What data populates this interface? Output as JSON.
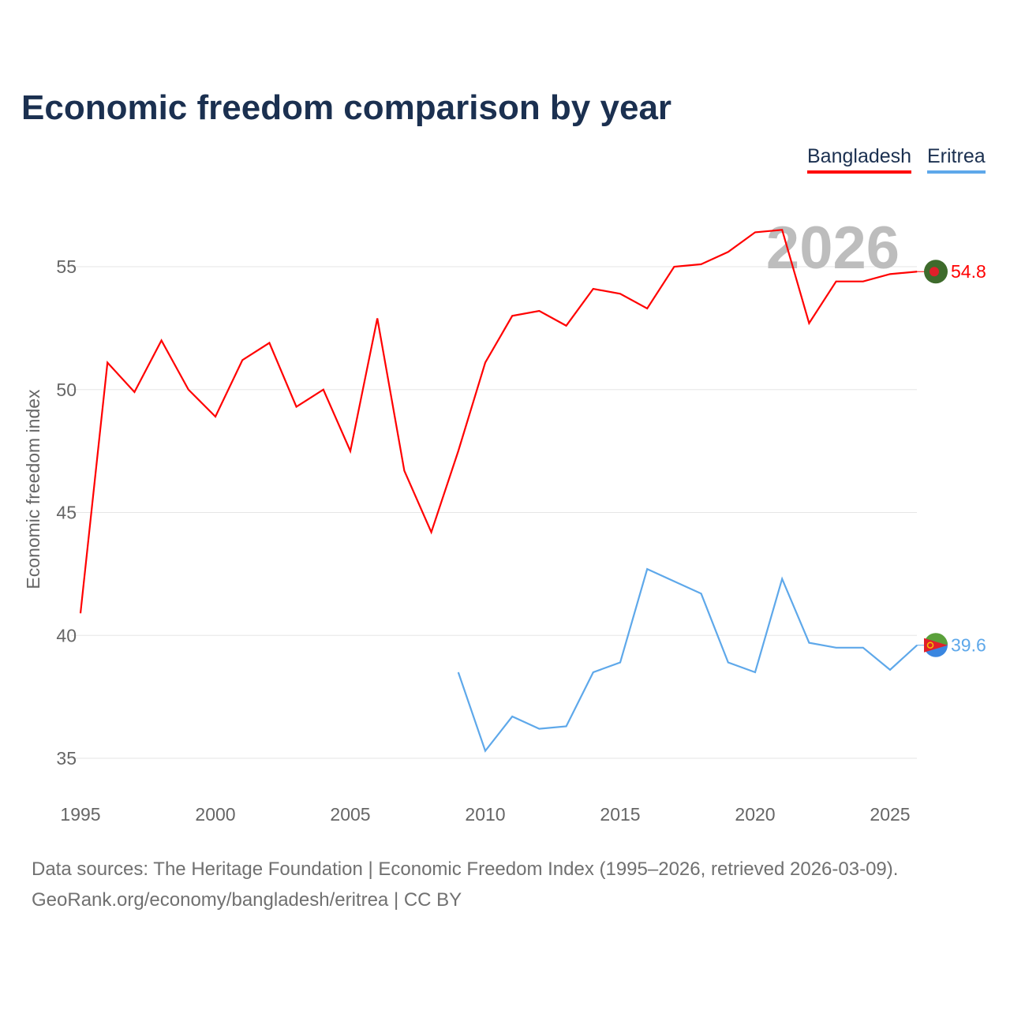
{
  "title": "Economic freedom comparison by year",
  "chart_data": {
    "type": "line",
    "title": "Economic freedom comparison by year",
    "xlabel": "",
    "ylabel": "Economic freedom index",
    "xlim": [
      1995,
      2026
    ],
    "ylim": [
      35,
      57
    ],
    "xticks": [
      1995,
      2000,
      2005,
      2010,
      2015,
      2020,
      2025
    ],
    "yticks": [
      35,
      40,
      45,
      50,
      55
    ],
    "grid": true,
    "legend_position": "top-right",
    "year_watermark": "2026",
    "series": [
      {
        "name": "Bangladesh",
        "color": "#ff0000",
        "end_label": "54.8",
        "x": [
          1995,
          1996,
          1997,
          1998,
          1999,
          2000,
          2001,
          2002,
          2003,
          2004,
          2005,
          2006,
          2007,
          2008,
          2009,
          2010,
          2011,
          2012,
          2013,
          2014,
          2015,
          2016,
          2017,
          2018,
          2019,
          2020,
          2021,
          2022,
          2023,
          2024,
          2025,
          2026
        ],
        "values": [
          40.9,
          51.1,
          49.9,
          52.0,
          50.0,
          48.9,
          51.2,
          51.9,
          49.3,
          50.0,
          47.5,
          52.9,
          46.7,
          44.2,
          47.5,
          51.1,
          53.0,
          53.2,
          52.6,
          54.1,
          53.9,
          53.3,
          55.0,
          55.1,
          55.6,
          56.4,
          56.5,
          52.7,
          54.4,
          54.4,
          54.7,
          54.8
        ]
      },
      {
        "name": "Eritrea",
        "color": "#5ea8ea",
        "end_label": "39.6",
        "x": [
          2009,
          2010,
          2011,
          2012,
          2013,
          2014,
          2015,
          2016,
          2017,
          2018,
          2019,
          2020,
          2021,
          2022,
          2023,
          2024,
          2025,
          2026
        ],
        "values": [
          38.5,
          35.3,
          36.7,
          36.2,
          36.3,
          38.5,
          38.9,
          42.7,
          42.2,
          41.7,
          38.9,
          38.5,
          42.3,
          39.7,
          39.5,
          39.5,
          38.6,
          39.6
        ]
      }
    ]
  },
  "footer": {
    "line1": "Data sources: The Heritage Foundation | Economic Freedom Index (1995–2026, retrieved 2026-03-09).",
    "line2": "GeoRank.org/economy/bangladesh/eritrea | CC BY"
  }
}
